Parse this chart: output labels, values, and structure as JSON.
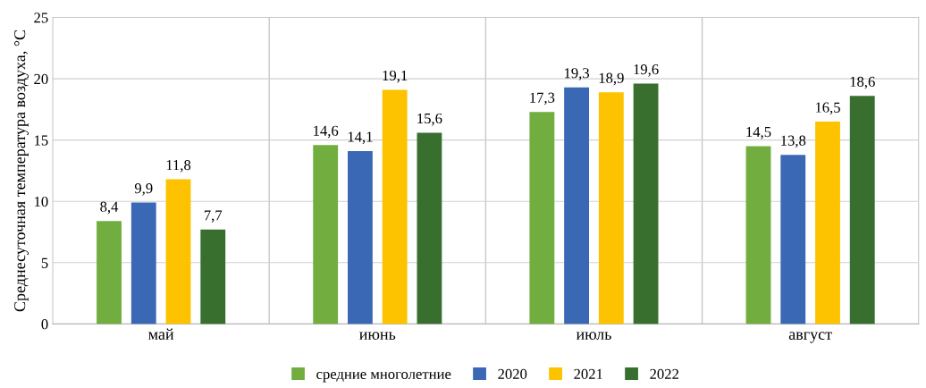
{
  "chart_data": {
    "type": "bar",
    "ylabel": "Среднесуточная температура воздуха, °С",
    "categories": [
      "май",
      "июнь",
      "июль",
      "август"
    ],
    "series": [
      {
        "name": "средние многолетние",
        "color": "#72ad3f",
        "values": [
          8.4,
          14.6,
          17.3,
          14.5
        ]
      },
      {
        "name": "2020",
        "color": "#3b68b5",
        "values": [
          9.9,
          14.1,
          19.3,
          13.8
        ]
      },
      {
        "name": "2021",
        "color": "#fdc200",
        "values": [
          11.8,
          19.1,
          18.9,
          16.5
        ]
      },
      {
        "name": "2022",
        "color": "#386f2e",
        "values": [
          7.7,
          15.6,
          19.6,
          18.6
        ]
      }
    ],
    "value_labels": [
      [
        "8,4",
        "14,6",
        "17,3",
        "14,5"
      ],
      [
        "9,9",
        "14,1",
        "19,3",
        "13,8"
      ],
      [
        "11,8",
        "19,1",
        "18,9",
        "16,5"
      ],
      [
        "7,7",
        "15,6",
        "19,6",
        "18,6"
      ]
    ],
    "ylim": [
      0,
      25
    ],
    "yticks": [
      0,
      5,
      10,
      15,
      20,
      25
    ],
    "grid": "y",
    "legend": "bottom"
  }
}
